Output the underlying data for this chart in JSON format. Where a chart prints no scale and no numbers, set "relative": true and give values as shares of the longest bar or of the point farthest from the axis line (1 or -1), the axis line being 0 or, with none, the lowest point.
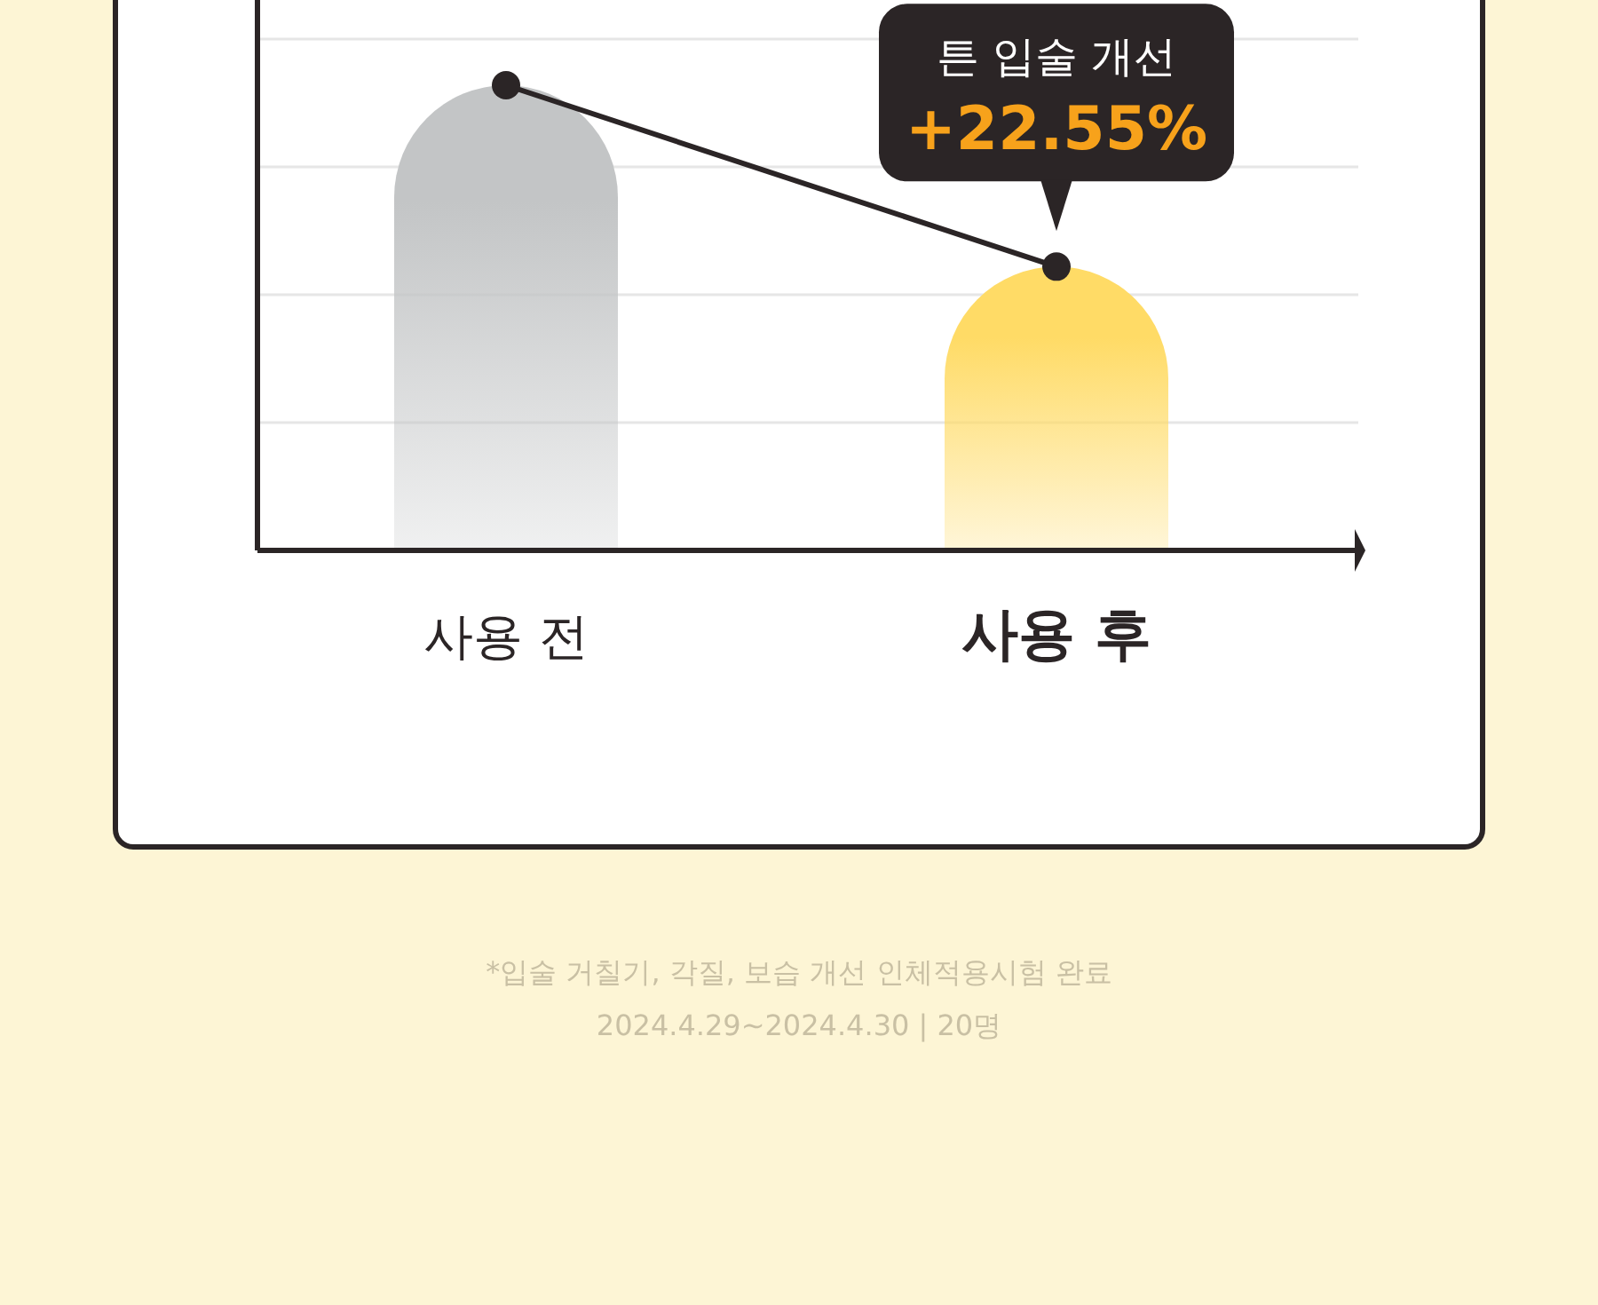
{
  "chart_data": {
    "type": "bar",
    "relative": true,
    "grid": "y",
    "categories": [
      "사용 전",
      "사용 후"
    ],
    "series": [
      {
        "colors": [
          "#c3c5c6",
          "#ffdb66"
        ],
        "values": [
          1,
          0.61
        ]
      },
      {
        "type": "line",
        "color": "#2b2526",
        "marker": "circle",
        "line_style": "solid",
        "values": [
          1,
          0.61
        ]
      }
    ],
    "annotations": [
      {
        "text": "튼 입술 개선\n+22.55%",
        "x": "사용 후",
        "y": 0.61
      },
      "*입술 거칠기, 각질, 보습 개선 인체적용시험 완료",
      "2024.4.29~2024.4.30  |  20명"
    ]
  }
}
